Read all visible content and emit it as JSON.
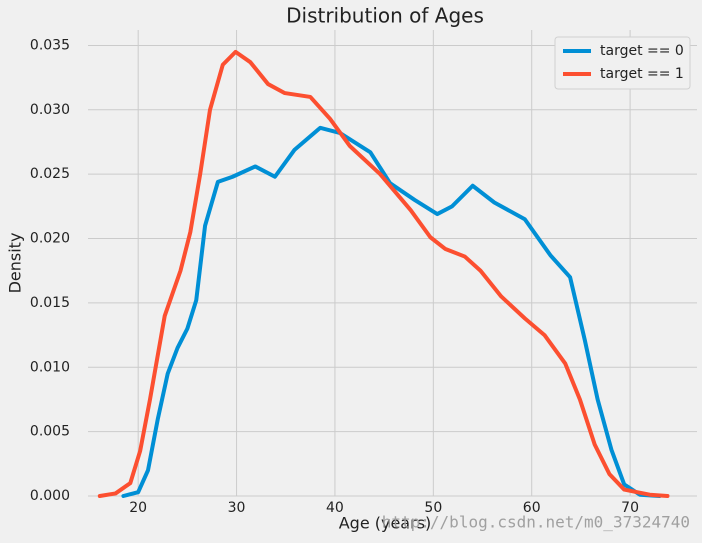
{
  "chart_data": {
    "type": "line",
    "title": "Distribution of Ages",
    "x_label": "Age (years)",
    "y_label": "Density",
    "watermark": "http://blog.csdn.net/m0_37324740",
    "xlim": [
      14.9,
      76.8
    ],
    "ylim": [
      0,
      0.0362
    ],
    "xticks": [
      20,
      30,
      40,
      50,
      60,
      70
    ],
    "yticks": [
      {
        "value": 0,
        "label": "0.000"
      },
      {
        "value": 0.005,
        "label": "0.005"
      },
      {
        "value": 0.01,
        "label": "0.010"
      },
      {
        "value": 0.015,
        "label": "0.015"
      },
      {
        "value": 0.02,
        "label": "0.020"
      },
      {
        "value": 0.025,
        "label": "0.025"
      },
      {
        "value": 0.03,
        "label": "0.030"
      },
      {
        "value": 0.035,
        "label": "0.035"
      }
    ],
    "grid": true,
    "legend": "upper right",
    "series": [
      {
        "name": "target == 0",
        "color": "#008fd5",
        "x": [
          18.5,
          20,
          21,
          22,
          23,
          24,
          25,
          25.9,
          26.8,
          28.1,
          29.6,
          31.9,
          33.9,
          35.9,
          38.5,
          40.5,
          43.6,
          45.6,
          48.1,
          50.4,
          51.9,
          54.0,
          56.2,
          59.3,
          61.9,
          63.9,
          65.4,
          66.7,
          68.1,
          69.4,
          71,
          73
        ],
        "values": [
          0,
          0.0003,
          0.002,
          0.006,
          0.0095,
          0.0115,
          0.013,
          0.0152,
          0.021,
          0.0244,
          0.0248,
          0.0256,
          0.0248,
          0.0269,
          0.0286,
          0.0282,
          0.0267,
          0.0243,
          0.023,
          0.0219,
          0.0225,
          0.0241,
          0.0228,
          0.0215,
          0.0187,
          0.017,
          0.0121,
          0.0075,
          0.0036,
          0.0009,
          0.0001,
          0
        ]
      },
      {
        "name": "target == 1",
        "color": "#fc4f30",
        "x": [
          16.1,
          17.7,
          19.2,
          20.2,
          21.2,
          22.7,
          24.3,
          25.3,
          26.3,
          27.3,
          28.6,
          29.9,
          31.4,
          33.2,
          34.9,
          37.5,
          39.5,
          41.5,
          44.6,
          47.7,
          49.7,
          51.2,
          53.2,
          54.8,
          56.9,
          59.3,
          61.3,
          63.4,
          64.9,
          66.4,
          67.9,
          69.4,
          72,
          73.8
        ],
        "values": [
          0,
          0.0002,
          0.001,
          0.0035,
          0.0075,
          0.014,
          0.0175,
          0.0205,
          0.025,
          0.03,
          0.0335,
          0.0345,
          0.0337,
          0.032,
          0.0313,
          0.031,
          0.0293,
          0.0272,
          0.025,
          0.0222,
          0.0201,
          0.0192,
          0.0186,
          0.0175,
          0.0155,
          0.0138,
          0.0125,
          0.0103,
          0.0075,
          0.004,
          0.0017,
          0.0005,
          0.0001,
          0
        ]
      }
    ]
  }
}
